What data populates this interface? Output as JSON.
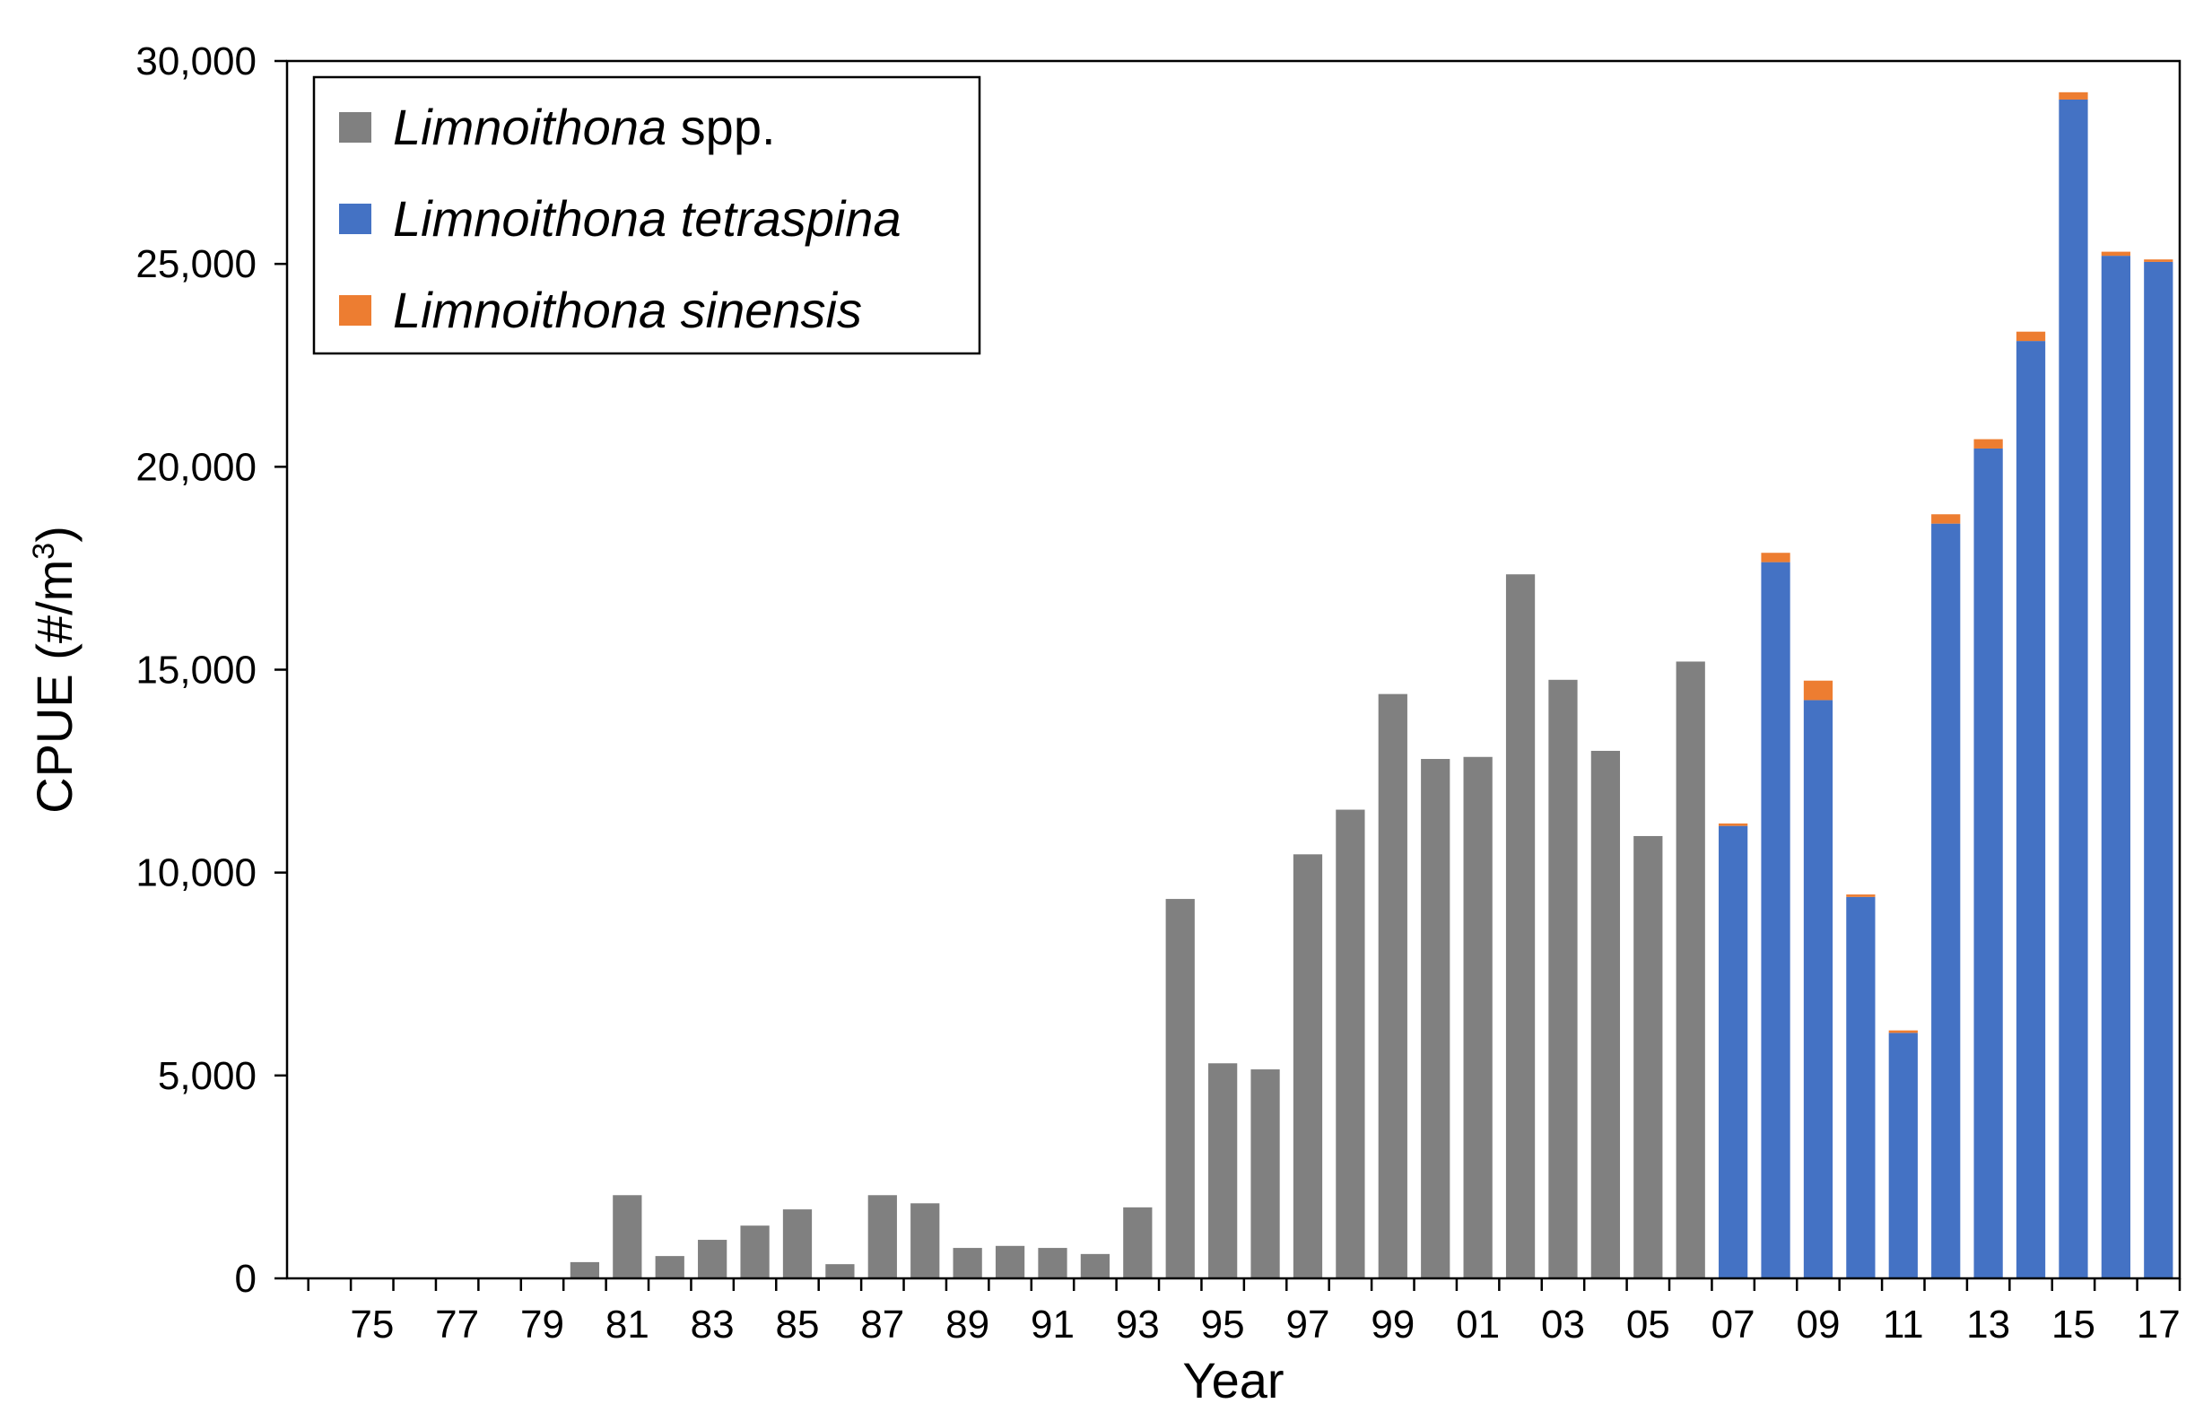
{
  "chart_data": {
    "type": "bar",
    "stacked": true,
    "title": "",
    "xlabel": "Year",
    "ylabel": "CPUE (#/m",
    "ylabel_superscript": "3",
    "ylabel_close": ")",
    "ylim": [
      0,
      30000
    ],
    "yticks": [
      "0",
      "5,000",
      "10,000",
      "15,000",
      "20,000",
      "25,000",
      "30,000"
    ],
    "ytick_values": [
      0,
      5000,
      10000,
      15000,
      20000,
      25000,
      30000
    ],
    "grid": false,
    "legend_position": "top-left",
    "categories": [
      "74",
      "75",
      "76",
      "77",
      "78",
      "79",
      "80",
      "81",
      "82",
      "83",
      "84",
      "85",
      "86",
      "87",
      "88",
      "89",
      "90",
      "91",
      "92",
      "93",
      "94",
      "95",
      "96",
      "97",
      "98",
      "99",
      "00",
      "01",
      "02",
      "03",
      "04",
      "05",
      "06",
      "07",
      "08",
      "09",
      "10",
      "11",
      "12",
      "13",
      "14",
      "15",
      "16",
      "17"
    ],
    "xtick_labels": [
      "75",
      "77",
      "79",
      "81",
      "83",
      "85",
      "87",
      "89",
      "91",
      "93",
      "95",
      "97",
      "99",
      "01",
      "03",
      "05",
      "07",
      "09",
      "11",
      "13",
      "15",
      "17"
    ],
    "series": [
      {
        "name_italic": "Limnoithona",
        "name_plain": " spp.",
        "color": "#808080",
        "values": [
          0,
          0,
          0,
          0,
          0,
          0,
          400,
          2050,
          550,
          950,
          1300,
          1700,
          350,
          2050,
          1850,
          750,
          800,
          750,
          600,
          1750,
          9350,
          5300,
          5150,
          10450,
          11550,
          14400,
          12800,
          12850,
          17350,
          14750,
          13000,
          10900,
          15200,
          0,
          0,
          0,
          0,
          0,
          0,
          0,
          0,
          0,
          0,
          0
        ]
      },
      {
        "name_italic": "Limnoithona tetraspina",
        "name_plain": "",
        "color": "#4472C4",
        "values": [
          0,
          0,
          0,
          0,
          0,
          0,
          0,
          0,
          0,
          0,
          0,
          0,
          0,
          0,
          0,
          0,
          0,
          0,
          0,
          0,
          0,
          0,
          0,
          0,
          0,
          0,
          0,
          0,
          0,
          0,
          0,
          0,
          0,
          11150,
          17650,
          14250,
          9400,
          6050,
          18600,
          20450,
          23100,
          29050,
          25200,
          25050
        ]
      },
      {
        "name_italic": "Limnoithona sinensis",
        "name_plain": "",
        "color": "#ED7D31",
        "values": [
          0,
          0,
          0,
          0,
          0,
          0,
          0,
          0,
          0,
          0,
          0,
          0,
          0,
          0,
          0,
          0,
          0,
          0,
          0,
          0,
          0,
          0,
          0,
          0,
          0,
          0,
          0,
          0,
          0,
          0,
          0,
          0,
          0,
          60,
          230,
          480,
          60,
          60,
          230,
          230,
          230,
          180,
          100,
          60
        ]
      }
    ]
  }
}
